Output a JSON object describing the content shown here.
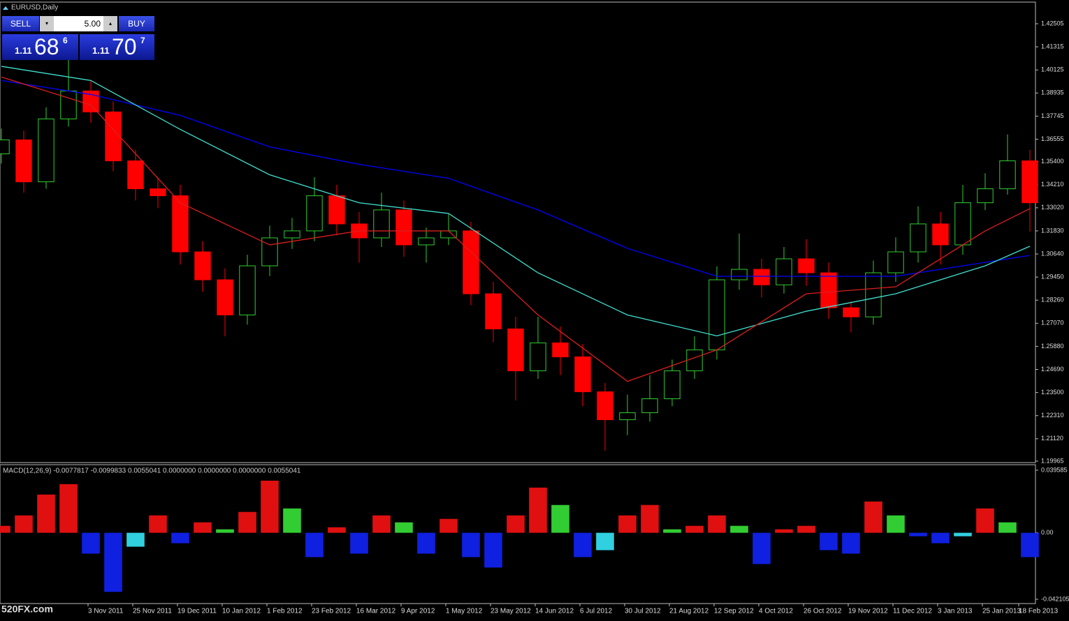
{
  "chart_data": [
    {
      "type": "candlestick",
      "title": "EURUSD,Daily",
      "x": [
        0,
        8,
        16,
        24,
        32,
        40,
        48,
        56,
        64,
        72,
        80,
        88,
        96,
        104,
        112,
        120,
        128,
        136,
        144,
        152,
        160,
        168,
        176,
        184,
        192,
        200,
        208,
        216,
        224,
        232,
        240,
        248,
        256,
        264,
        272,
        280,
        288,
        296,
        304,
        312,
        320,
        328,
        336,
        344,
        352,
        360,
        368
      ],
      "open": [
        1.358,
        1.3652,
        1.3436,
        1.376,
        1.3904,
        1.3796,
        1.3544,
        1.34,
        1.3364,
        1.3075,
        1.2931,
        1.275,
        1.3003,
        1.3147,
        1.3183,
        1.3364,
        1.3219,
        1.3147,
        1.3291,
        1.3111,
        1.3147,
        1.3183,
        1.2859,
        1.2678,
        1.2462,
        1.2606,
        1.2534,
        1.2354,
        1.221,
        1.2246,
        1.2318,
        1.2462,
        1.257,
        1.2931,
        1.2985,
        1.2905,
        1.3039,
        1.2967,
        1.2787,
        1.274,
        1.2967,
        1.3075,
        1.3219,
        1.3111,
        1.3328,
        1.34,
        1.3544
      ],
      "high": [
        1.371,
        1.37,
        1.382,
        1.408,
        1.396,
        1.385,
        1.36,
        1.346,
        1.342,
        1.313,
        1.299,
        1.306,
        1.321,
        1.325,
        1.346,
        1.342,
        1.328,
        1.338,
        1.334,
        1.32,
        1.327,
        1.323,
        1.292,
        1.274,
        1.274,
        1.269,
        1.26,
        1.24,
        1.234,
        1.244,
        1.252,
        1.264,
        1.3,
        1.317,
        1.304,
        1.31,
        1.314,
        1.302,
        1.282,
        1.303,
        1.315,
        1.331,
        1.328,
        1.342,
        1.348,
        1.368,
        1.36
      ],
      "low": [
        1.353,
        1.338,
        1.34,
        1.372,
        1.374,
        1.349,
        1.334,
        1.33,
        1.301,
        1.287,
        1.264,
        1.27,
        1.295,
        1.309,
        1.313,
        1.316,
        1.302,
        1.31,
        1.305,
        1.302,
        1.311,
        1.28,
        1.261,
        1.231,
        1.242,
        1.244,
        1.228,
        1.205,
        1.213,
        1.22,
        1.228,
        1.242,
        1.252,
        1.288,
        1.284,
        1.286,
        1.29,
        1.273,
        1.266,
        1.27,
        1.292,
        1.302,
        1.301,
        1.306,
        1.329,
        1.337,
        1.318
      ],
      "close": [
        1.3652,
        1.3436,
        1.376,
        1.3904,
        1.3796,
        1.3544,
        1.34,
        1.3364,
        1.3075,
        1.2931,
        1.275,
        1.3003,
        1.3147,
        1.3183,
        1.3364,
        1.3219,
        1.3147,
        1.3291,
        1.3111,
        1.3147,
        1.3183,
        1.2859,
        1.2678,
        1.2462,
        1.2606,
        1.2534,
        1.2354,
        1.221,
        1.2246,
        1.2318,
        1.2462,
        1.257,
        1.2931,
        1.2985,
        1.2905,
        1.3039,
        1.2967,
        1.2787,
        1.274,
        1.2967,
        1.3075,
        1.3219,
        1.3111,
        1.3328,
        1.34,
        1.3544,
        1.3328
      ],
      "up_color": "#32cd32",
      "down_color": "#ff0000",
      "lines": [
        {
          "color": "#0000ff",
          "x": [
            0,
            32,
            64,
            96,
            128,
            160,
            192,
            224,
            256,
            288,
            320,
            352,
            368
          ],
          "values": [
            1.3958,
            1.3886,
            1.3778,
            1.3616,
            1.3526,
            1.3454,
            1.3291,
            1.3093,
            1.2949,
            1.2949,
            1.2949,
            1.3021,
            1.3057
          ]
        },
        {
          "color": "#40e0d0",
          "x": [
            0,
            32,
            64,
            96,
            128,
            160,
            192,
            224,
            256,
            288,
            320,
            352,
            368
          ],
          "values": [
            1.4031,
            1.3958,
            1.3706,
            1.3472,
            1.3328,
            1.3273,
            1.2967,
            1.275,
            1.2642,
            1.2769,
            1.2859,
            1.3003,
            1.3104
          ]
        },
        {
          "color": "#dc1e1e",
          "x": [
            0,
            32,
            64,
            96,
            128,
            160,
            192,
            224,
            256,
            288,
            320,
            352,
            368
          ],
          "values": [
            1.3976,
            1.3832,
            1.3328,
            1.3111,
            1.3183,
            1.3183,
            1.275,
            1.2408,
            1.257,
            1.2859,
            1.2895,
            1.3183,
            1.3298
          ]
        }
      ],
      "xlim": [
        0,
        370
      ],
      "ylim": [
        1.1989,
        1.4362
      ],
      "yticks": [
        1.42505,
        1.41315,
        1.40125,
        1.38935,
        1.37745,
        1.36555,
        {
          "value": 1.354,
          "label": "1.35400"
        },
        {
          "value": 1.3421,
          "label": "1.34210"
        },
        {
          "value": 1.3302,
          "label": "1.33020"
        },
        {
          "value": 1.3183,
          "label": "1.31830"
        },
        {
          "value": 1.3064,
          "label": "1.30640"
        },
        {
          "value": 1.2945,
          "label": "1.29450"
        },
        {
          "value": 1.2826,
          "label": "1.28260"
        },
        {
          "value": 1.2707,
          "label": "1.27070"
        },
        {
          "value": 1.2588,
          "label": "1.25880"
        },
        {
          "value": 1.2469,
          "label": "1.24690"
        },
        {
          "value": 1.235,
          "label": "1.23500"
        },
        {
          "value": 1.2231,
          "label": "1.22310"
        },
        {
          "value": 1.2112,
          "label": "1.21120"
        },
        1.19965
      ],
      "xticks": [
        {
          "value": 31,
          "label": "3 Nov 2011"
        },
        {
          "value": 47,
          "label": "25 Nov 2011"
        },
        {
          "value": 63,
          "label": "19 Dec 2011"
        },
        {
          "value": 79,
          "label": "10 Jan 2012"
        },
        {
          "value": 95,
          "label": "1 Feb 2012"
        },
        {
          "value": 111,
          "label": "23 Feb 2012"
        },
        {
          "value": 127,
          "label": "16 Mar 2012"
        },
        {
          "value": 143,
          "label": "9 Apr 2012"
        },
        {
          "value": 159,
          "label": "1 May 2012"
        },
        {
          "value": 175,
          "label": "23 May 2012"
        },
        {
          "value": 191,
          "label": "14 Jun 2012"
        },
        {
          "value": 207,
          "label": "6 Jul 2012"
        },
        {
          "value": 223,
          "label": "30 Jul 2012"
        },
        {
          "value": 239,
          "label": "21 Aug 2012"
        },
        {
          "value": 255,
          "label": "12 Sep 2012"
        },
        {
          "value": 271,
          "label": "4 Oct 2012"
        },
        {
          "value": 287,
          "label": "26 Oct 2012"
        },
        {
          "value": 303,
          "label": "19 Nov 2012"
        },
        {
          "value": 319,
          "label": "11 Dec 2012"
        },
        {
          "value": 335,
          "label": "3 Jan 2013"
        },
        {
          "value": 351,
          "label": "25 Jan 2013"
        },
        {
          "value": 364,
          "label": "18 Feb 2013"
        }
      ]
    },
    {
      "type": "bar",
      "title": "MACD(12,26,9) -0.0077817 -0.0099833 0.0055041 0.0000000 0.0000000 0.0000000 0.0055041",
      "x": [
        0,
        8,
        16,
        24,
        32,
        40,
        48,
        56,
        64,
        72,
        80,
        88,
        96,
        104,
        112,
        120,
        128,
        136,
        144,
        152,
        160,
        168,
        176,
        184,
        192,
        200,
        208,
        216,
        224,
        232,
        240,
        248,
        256,
        264,
        272,
        280,
        288,
        296,
        304,
        312,
        320,
        328,
        336,
        344,
        352,
        360,
        368
      ],
      "values": [
        0.0044,
        0.011,
        0.0242,
        0.0308,
        -0.0132,
        -0.0374,
        -0.0088,
        0.011,
        -0.0066,
        0.0066,
        0.0022,
        0.0132,
        0.033,
        0.0154,
        -0.0154,
        0.0035,
        -0.0132,
        0.011,
        0.0066,
        -0.0132,
        0.0088,
        -0.0154,
        -0.022,
        0.011,
        0.0286,
        0.0176,
        -0.0154,
        -0.011,
        0.011,
        0.0176,
        0.0022,
        0.0044,
        0.011,
        0.0044,
        -0.0198,
        0.0022,
        0.0044,
        -0.011,
        -0.0132,
        0.0198,
        0.011,
        -0.0022,
        -0.0066,
        -0.0022,
        0.0154,
        0.0066,
        -0.0154
      ],
      "colors": {
        "pos_rising": "#e01010",
        "pos_falling": "#32cd32",
        "neg_falling": "#1020e0",
        "neg_rising": "#30d0e0"
      },
      "xlim": [
        0,
        370
      ],
      "ylim": [
        -0.0448,
        0.0431
      ],
      "yticks": [
        0.039585,
        {
          "value": 0,
          "label": "0.00"
        },
        -0.042105
      ]
    }
  ],
  "trade_panel": {
    "sell": "SELL",
    "lots": "5.00",
    "buy": "BUY",
    "bid": {
      "big": "1.11",
      "main": "68",
      "pip": "6"
    },
    "ask": {
      "big": "1.11",
      "main": "70",
      "pip": "7"
    }
  },
  "watermark": "520FX.com"
}
